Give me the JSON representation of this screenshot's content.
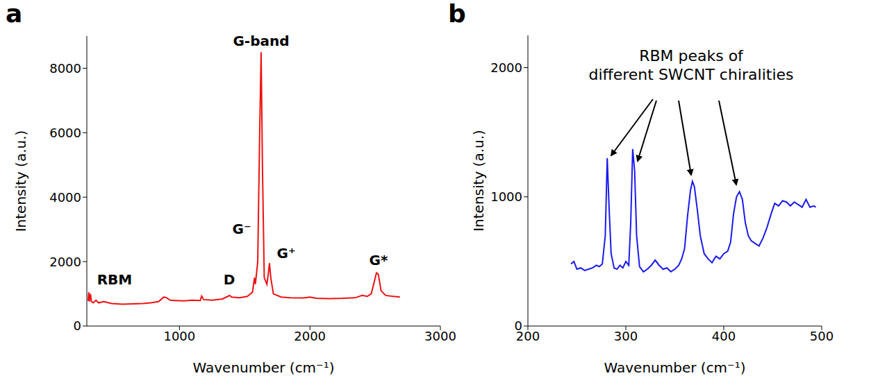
{
  "chart_data": [
    {
      "type": "line",
      "panel_label": "a",
      "x_label": "Wavenumber (cm⁻¹)",
      "y_label": "Intensity (a.u.)",
      "color": "#ee1111",
      "x": [
        300,
        305,
        310,
        318,
        325,
        340,
        360,
        380,
        420,
        480,
        560,
        650,
        720,
        780,
        840,
        880,
        900,
        930,
        970,
        1030,
        1100,
        1160,
        1170,
        1185,
        1250,
        1330,
        1370,
        1385,
        1400,
        1460,
        1520,
        1560,
        1575,
        1582,
        1600,
        1615,
        1626,
        1636,
        1650,
        1670,
        1682,
        1690,
        1700,
        1720,
        1780,
        1850,
        1950,
        2000,
        2050,
        2150,
        2250,
        2350,
        2400,
        2440,
        2470,
        2495,
        2510,
        2525,
        2545,
        2580,
        2640,
        2690
      ],
      "values": [
        780,
        1050,
        760,
        1000,
        760,
        720,
        800,
        720,
        760,
        700,
        680,
        690,
        700,
        720,
        760,
        900,
        880,
        800,
        790,
        780,
        800,
        790,
        930,
        820,
        800,
        840,
        920,
        950,
        900,
        880,
        920,
        1050,
        1500,
        1300,
        2000,
        6000,
        8500,
        5000,
        1500,
        1300,
        1650,
        1950,
        1500,
        1000,
        900,
        880,
        870,
        900,
        860,
        850,
        860,
        880,
        950,
        920,
        1000,
        1400,
        1650,
        1600,
        1100,
        950,
        920,
        900
      ],
      "xlim": [
        290,
        3000
      ],
      "xticks": [
        1000,
        2000,
        3000
      ],
      "ylim": [
        0,
        9000
      ],
      "yticks": [
        0,
        2000,
        4000,
        6000,
        8000
      ],
      "grid": false,
      "annotations": [
        "RBM",
        "D",
        "G⁻",
        "G-band",
        "G⁺",
        "G*"
      ]
    },
    {
      "type": "line",
      "panel_label": "b",
      "x_label": "Wavenumber (cm⁻¹)",
      "y_label": "Intensity (a.u.)",
      "color": "#1a1aee",
      "x": [
        244,
        247,
        250,
        254,
        258,
        262,
        266,
        270,
        273,
        276,
        279,
        281,
        283,
        285,
        288,
        291,
        294,
        297,
        300,
        303,
        305,
        307,
        309,
        311,
        314,
        318,
        322,
        326,
        330,
        334,
        338,
        342,
        346,
        350,
        354,
        357,
        360,
        363,
        366,
        368,
        370,
        373,
        376,
        380,
        384,
        388,
        392,
        396,
        400,
        404,
        407,
        410,
        413,
        416,
        419,
        422,
        425,
        428,
        432,
        436,
        440,
        444,
        448,
        452,
        456,
        460,
        464,
        468,
        472,
        476,
        480,
        484,
        488,
        492,
        494
      ],
      "values": [
        480,
        500,
        440,
        450,
        430,
        440,
        450,
        470,
        460,
        480,
        700,
        1300,
        900,
        560,
        450,
        440,
        470,
        450,
        500,
        470,
        800,
        1370,
        1200,
        700,
        460,
        420,
        440,
        470,
        510,
        470,
        440,
        450,
        420,
        440,
        470,
        520,
        600,
        850,
        1050,
        1120,
        1080,
        900,
        700,
        560,
        520,
        490,
        540,
        520,
        560,
        580,
        650,
        870,
        1000,
        1040,
        980,
        800,
        700,
        660,
        640,
        620,
        680,
        760,
        860,
        950,
        930,
        970,
        960,
        930,
        960,
        940,
        920,
        980,
        920,
        930,
        920
      ],
      "xlim": [
        200,
        500
      ],
      "xticks": [
        200,
        300,
        400,
        500
      ],
      "ylim": [
        0,
        2250
      ],
      "yticks": [
        0,
        1000,
        2000
      ],
      "grid": false,
      "annotations": [
        "RBM peaks of different SWCNT chiralities"
      ]
    }
  ]
}
